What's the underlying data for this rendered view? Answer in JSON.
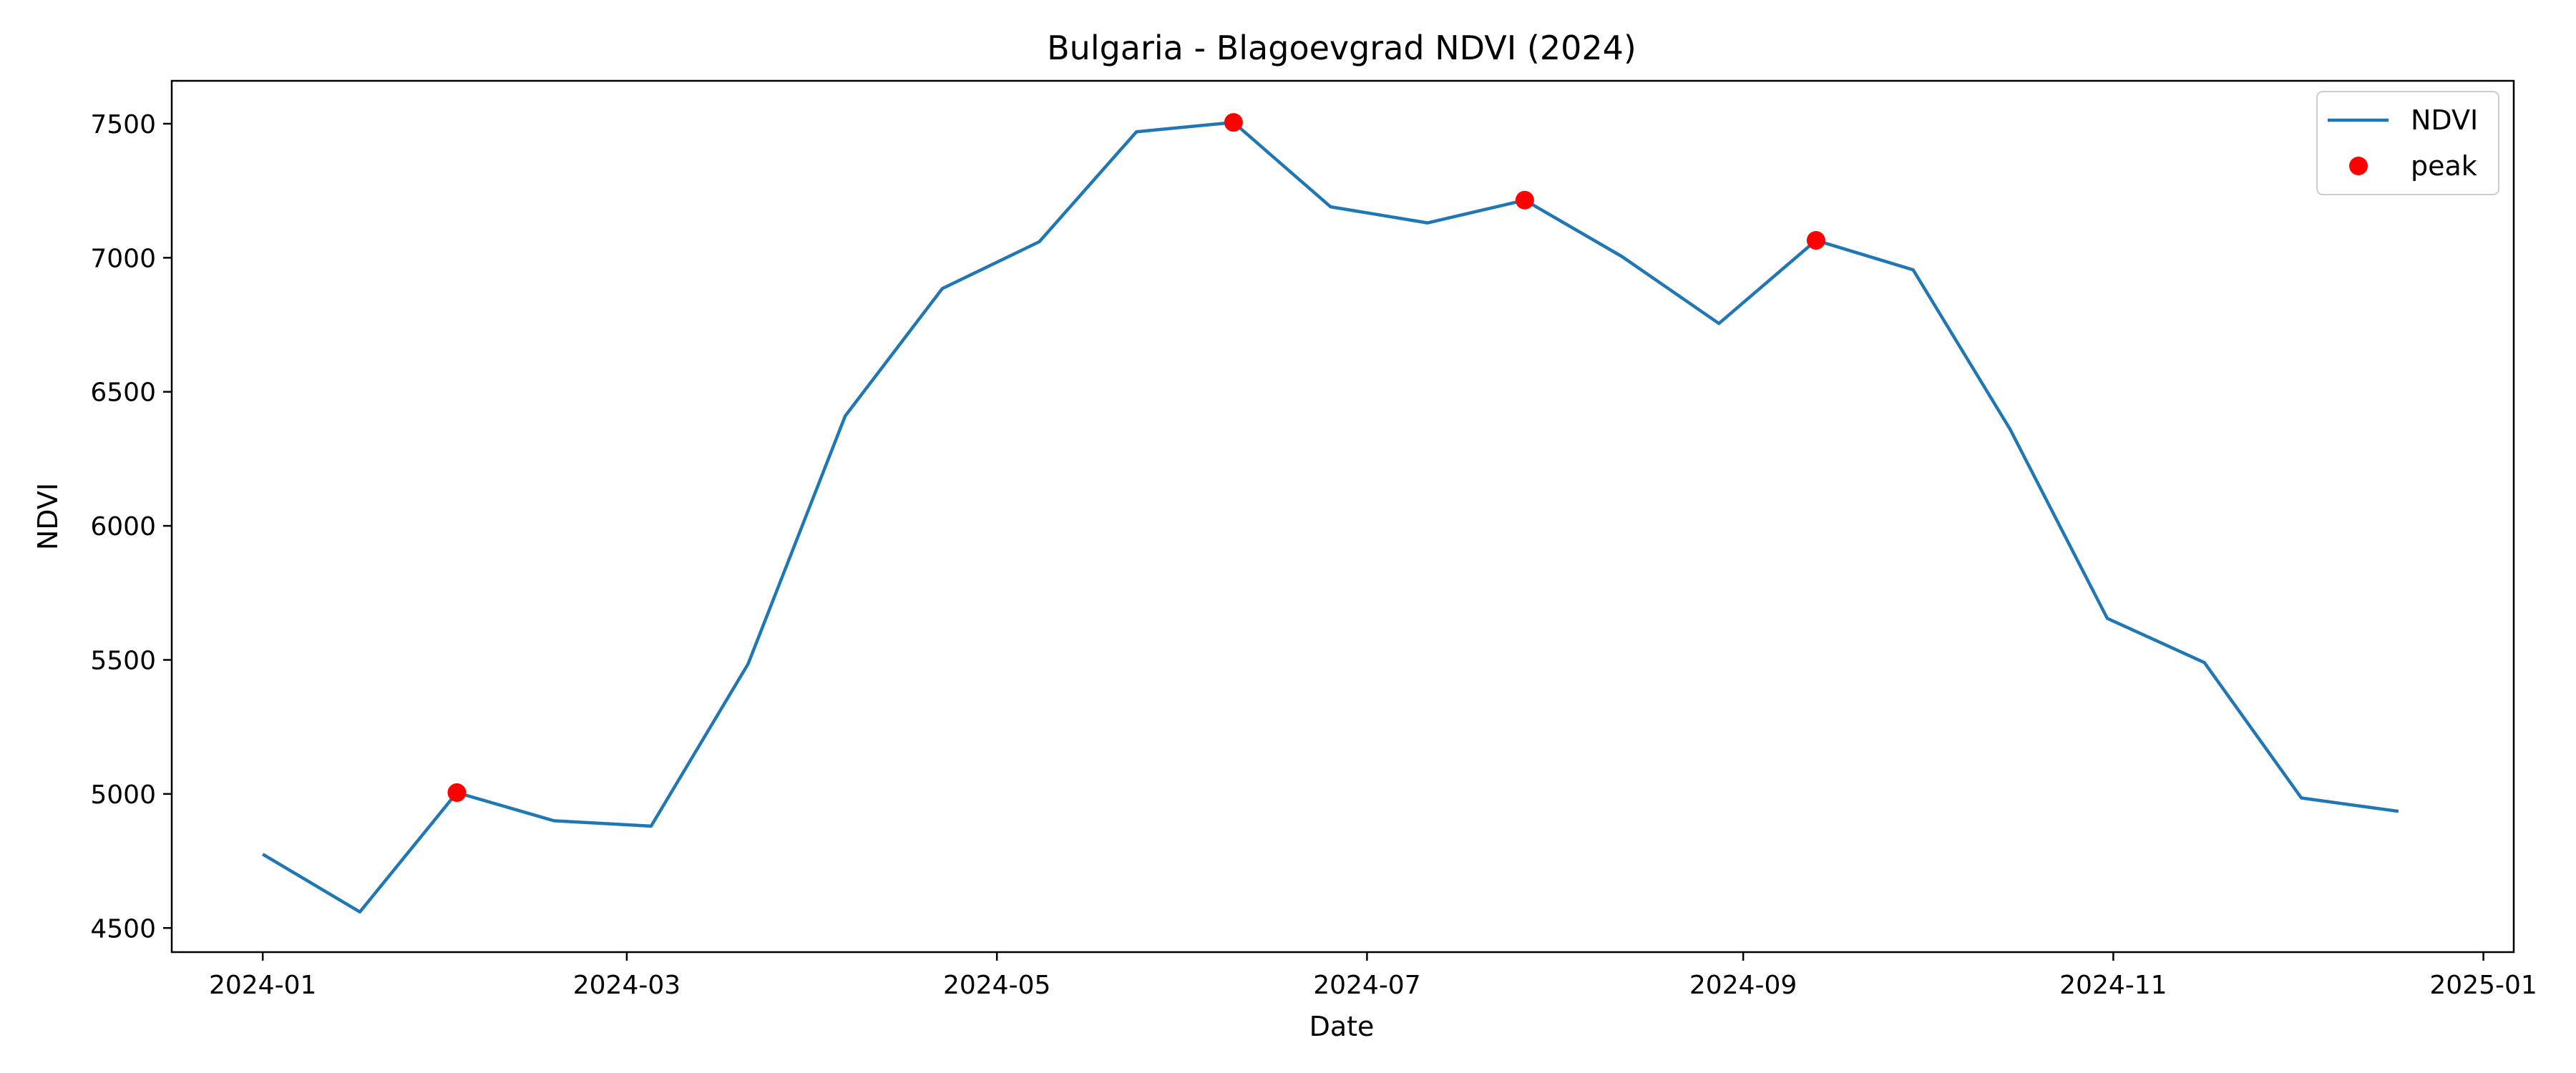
{
  "chart_data": {
    "type": "line",
    "title": "Bulgaria - Blagoevgrad NDVI (2024)",
    "xlabel": "Date",
    "ylabel": "NDVI",
    "xlim": [
      "2023-12-17",
      "2025-01-06"
    ],
    "ylim": [
      4410,
      7660
    ],
    "x_ticks": [
      "2024-01-01",
      "2024-03-01",
      "2024-05-01",
      "2024-07-01",
      "2024-09-01",
      "2024-11-01",
      "2025-01-01"
    ],
    "x_tick_labels": [
      "2024-01",
      "2024-03",
      "2024-05",
      "2024-07",
      "2024-09",
      "2024-11",
      "2025-01"
    ],
    "y_ticks": [
      4500,
      5000,
      5500,
      6000,
      6500,
      7000,
      7500
    ],
    "y_tick_labels": [
      "4500",
      "5000",
      "5500",
      "6000",
      "6500",
      "7000",
      "7500"
    ],
    "grid": false,
    "legend": "top-right",
    "series": [
      {
        "name": "NDVI",
        "kind": "line",
        "color": "#1f77b4",
        "x": [
          "2024-01-01",
          "2024-01-17",
          "2024-02-02",
          "2024-02-18",
          "2024-03-05",
          "2024-03-21",
          "2024-04-06",
          "2024-04-22",
          "2024-05-08",
          "2024-05-24",
          "2024-06-09",
          "2024-06-25",
          "2024-07-11",
          "2024-07-27",
          "2024-08-12",
          "2024-08-28",
          "2024-09-13",
          "2024-09-29",
          "2024-10-15",
          "2024-10-31",
          "2024-11-16",
          "2024-12-02",
          "2024-12-18"
        ],
        "values": [
          4775,
          4560,
          5005,
          4900,
          4880,
          5485,
          6410,
          6885,
          7060,
          7470,
          7505,
          7190,
          7130,
          7215,
          7005,
          6755,
          7065,
          6955,
          6360,
          5655,
          5490,
          4985,
          4935
        ]
      },
      {
        "name": "peak",
        "kind": "marker",
        "color": "#ff0000",
        "x": [
          "2024-02-02",
          "2024-06-09",
          "2024-07-27",
          "2024-09-13"
        ],
        "values": [
          5005,
          7505,
          7215,
          7065
        ]
      }
    ]
  }
}
